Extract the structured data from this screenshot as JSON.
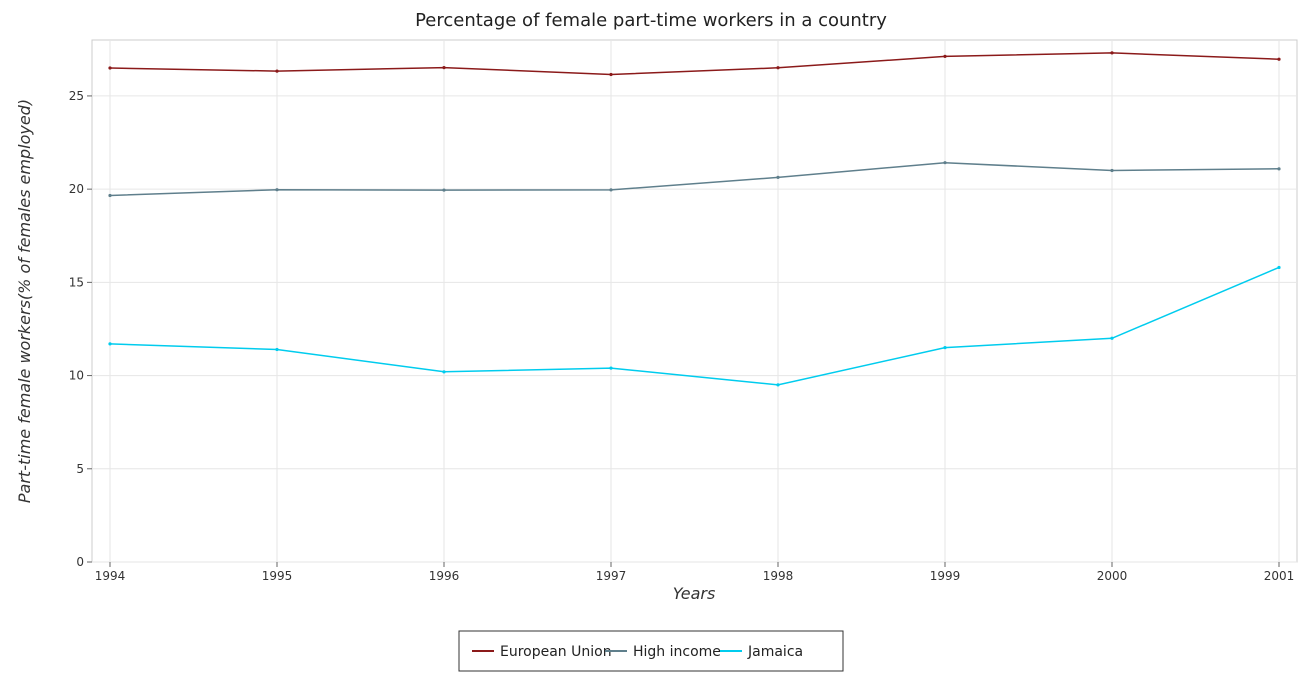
{
  "chart_data": {
    "type": "line",
    "title": "Percentage of female part-time workers in a country",
    "xlabel": "Years",
    "ylabel": "Part-time female workers(% of females employed)",
    "categories": [
      "1994",
      "1995",
      "1996",
      "1997",
      "1998",
      "1999",
      "2000",
      "2001"
    ],
    "ylim": [
      0,
      28
    ],
    "yticks": [
      "0",
      "5",
      "10",
      "15",
      "20",
      "25"
    ],
    "ytick_values": [
      0,
      5,
      10,
      15,
      20,
      25
    ],
    "grid": true,
    "legend_position": "bottom-center",
    "series": [
      {
        "name": "European Union",
        "color": "#8b1a1a",
        "values": [
          26.5,
          26.33,
          26.52,
          26.15,
          26.51,
          27.12,
          27.31,
          26.97
        ]
      },
      {
        "name": "High income",
        "color": "#5f7f8c",
        "values": [
          19.66,
          19.97,
          19.95,
          19.96,
          20.63,
          21.42,
          21.0,
          21.09
        ]
      },
      {
        "name": "Jamaica",
        "color": "#00ccee",
        "values": [
          11.7,
          11.4,
          10.2,
          10.4,
          9.5,
          11.5,
          12.0,
          15.8
        ]
      }
    ]
  }
}
